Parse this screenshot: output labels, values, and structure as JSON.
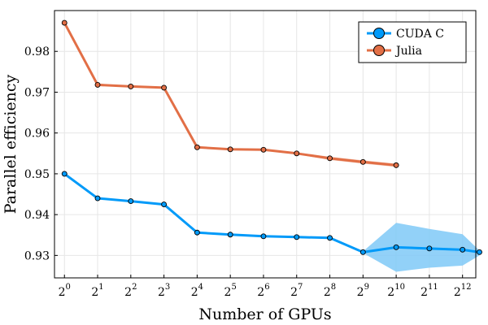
{
  "chart_data": {
    "type": "line",
    "xlabel": "Number of GPUs",
    "ylabel": "Parallel efficiency",
    "x_scale": "log2",
    "xlim_exp": [
      -0.3,
      12.4
    ],
    "ylim": [
      0.9245,
      0.99
    ],
    "xticks": [
      {
        "base": "2",
        "exp": "0"
      },
      {
        "base": "2",
        "exp": "1"
      },
      {
        "base": "2",
        "exp": "2"
      },
      {
        "base": "2",
        "exp": "3"
      },
      {
        "base": "2",
        "exp": "4"
      },
      {
        "base": "2",
        "exp": "5"
      },
      {
        "base": "2",
        "exp": "6"
      },
      {
        "base": "2",
        "exp": "7"
      },
      {
        "base": "2",
        "exp": "8"
      },
      {
        "base": "2",
        "exp": "9"
      },
      {
        "base": "2",
        "exp": "10"
      },
      {
        "base": "2",
        "exp": "11"
      },
      {
        "base": "2",
        "exp": "12"
      }
    ],
    "yticks": [
      "0.93",
      "0.94",
      "0.95",
      "0.96",
      "0.97",
      "0.98"
    ],
    "grid": true,
    "legend_position": "top-right",
    "series": [
      {
        "name": "CUDA C",
        "color": "#009af9",
        "band_color": "#7fc9f7",
        "x": [
          1,
          2,
          4,
          8,
          16,
          32,
          64,
          128,
          256,
          512,
          1024,
          2048,
          4096,
          5832
        ],
        "y": [
          0.95,
          0.944,
          0.9433,
          0.9425,
          0.9356,
          0.9351,
          0.9347,
          0.9345,
          0.9343,
          0.9308,
          0.932,
          0.9317,
          0.9314,
          0.9308
        ],
        "band_low": [
          0.95,
          0.944,
          0.9433,
          0.9425,
          0.9356,
          0.9351,
          0.9347,
          0.9345,
          0.9343,
          0.9306,
          0.926,
          0.927,
          0.9275,
          0.93
        ],
        "band_high": [
          0.95,
          0.944,
          0.9433,
          0.9425,
          0.9356,
          0.9351,
          0.9347,
          0.9345,
          0.9343,
          0.931,
          0.938,
          0.9365,
          0.9352,
          0.9312
        ]
      },
      {
        "name": "Julia",
        "color": "#e26f46",
        "band_color": "#efb29a",
        "x": [
          1,
          2,
          4,
          8,
          16,
          32,
          64,
          128,
          256,
          512,
          1024
        ],
        "y": [
          0.987,
          0.9718,
          0.9714,
          0.9711,
          0.9565,
          0.956,
          0.9559,
          0.955,
          0.9538,
          0.9529,
          0.9521
        ],
        "band_low": [
          0.987,
          0.9716,
          0.9712,
          0.9709,
          0.9563,
          0.9558,
          0.9557,
          0.9548,
          0.9534,
          0.9525,
          0.9517
        ],
        "band_high": [
          0.987,
          0.972,
          0.9716,
          0.9713,
          0.9567,
          0.9562,
          0.9561,
          0.9552,
          0.9542,
          0.9533,
          0.9525
        ]
      }
    ]
  }
}
